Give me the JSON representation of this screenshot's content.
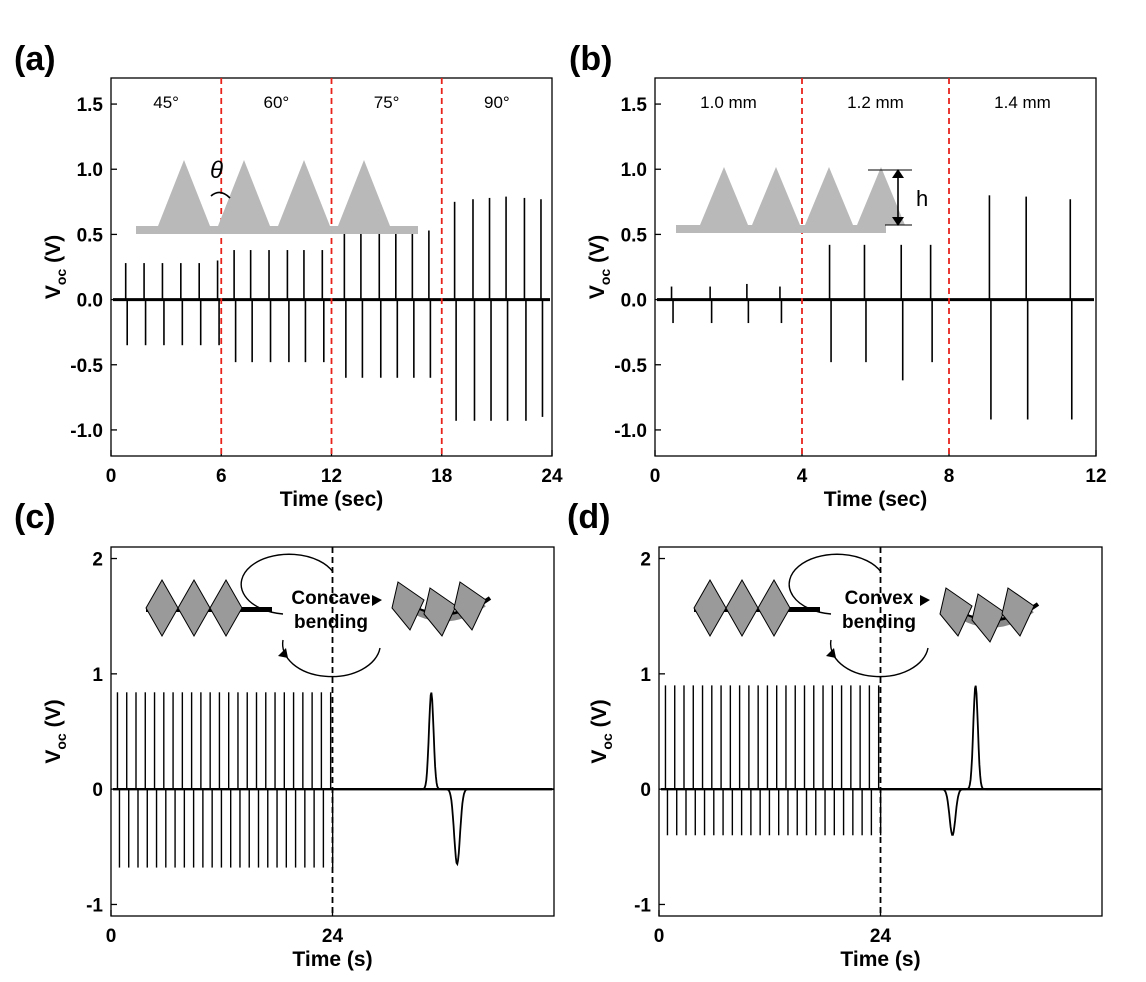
{
  "panels": [
    {
      "label": "(a)",
      "chart_data": {
        "type": "line",
        "xlabel": "Time (sec)",
        "ylabel_main": "V",
        "ylabel_sub": "oc",
        "ylabel_unit": "(V)",
        "xlim": [
          0,
          24
        ],
        "ylim": [
          -1.2,
          1.7
        ],
        "xticks": [
          0,
          6,
          12,
          18,
          24
        ],
        "xtick_labels": [
          "0",
          "6",
          "12",
          "18",
          "24"
        ],
        "yticks": [
          -1.0,
          -0.5,
          0.0,
          0.5,
          1.0,
          1.5
        ],
        "ytick_labels": [
          "-1.0",
          "-0.5",
          "0.0",
          "0.5",
          "1.0",
          "1.5"
        ],
        "baseline": 0,
        "dividers": [
          6,
          12,
          18
        ],
        "divider_color": "#e8231c",
        "segment_labels": [
          {
            "text": "45°",
            "x": 3
          },
          {
            "text": "60°",
            "x": 9
          },
          {
            "text": "75°",
            "x": 15
          },
          {
            "text": "90°",
            "x": 21
          }
        ],
        "peaks": [
          {
            "x": 0.8,
            "pos": 0.28,
            "neg": -0.35
          },
          {
            "x": 1.8,
            "pos": 0.28,
            "neg": -0.35
          },
          {
            "x": 2.8,
            "pos": 0.28,
            "neg": -0.35
          },
          {
            "x": 3.8,
            "pos": 0.28,
            "neg": -0.35
          },
          {
            "x": 4.8,
            "pos": 0.28,
            "neg": -0.35
          },
          {
            "x": 5.8,
            "pos": 0.3,
            "neg": -0.35
          },
          {
            "x": 6.7,
            "pos": 0.38,
            "neg": -0.48
          },
          {
            "x": 7.6,
            "pos": 0.38,
            "neg": -0.48
          },
          {
            "x": 8.6,
            "pos": 0.38,
            "neg": -0.48
          },
          {
            "x": 9.6,
            "pos": 0.38,
            "neg": -0.48
          },
          {
            "x": 10.5,
            "pos": 0.38,
            "neg": -0.48
          },
          {
            "x": 11.5,
            "pos": 0.38,
            "neg": -0.48
          },
          {
            "x": 12.7,
            "pos": 0.53,
            "neg": -0.6
          },
          {
            "x": 13.6,
            "pos": 0.53,
            "neg": -0.6
          },
          {
            "x": 14.6,
            "pos": 0.53,
            "neg": -0.6
          },
          {
            "x": 15.5,
            "pos": 0.53,
            "neg": -0.6
          },
          {
            "x": 16.4,
            "pos": 0.53,
            "neg": -0.6
          },
          {
            "x": 17.3,
            "pos": 0.53,
            "neg": -0.6
          },
          {
            "x": 18.7,
            "pos": 0.75,
            "neg": -0.93
          },
          {
            "x": 19.7,
            "pos": 0.77,
            "neg": -0.93
          },
          {
            "x": 20.6,
            "pos": 0.78,
            "neg": -0.93
          },
          {
            "x": 21.5,
            "pos": 0.79,
            "neg": -0.93
          },
          {
            "x": 22.5,
            "pos": 0.78,
            "neg": -0.93
          },
          {
            "x": 23.4,
            "pos": 0.77,
            "neg": -0.9
          }
        ],
        "inset": {
          "type": "triangles",
          "symbol": "θ"
        }
      }
    },
    {
      "label": "(b)",
      "chart_data": {
        "type": "line",
        "xlabel": "Time (sec)",
        "ylabel_main": "V",
        "ylabel_sub": "oc",
        "ylabel_unit": "(V)",
        "xlim": [
          0,
          12
        ],
        "ylim": [
          -1.2,
          1.7
        ],
        "xticks": [
          0,
          4,
          8,
          12
        ],
        "xtick_labels": [
          "0",
          "4",
          "8",
          "12"
        ],
        "yticks": [
          -1.0,
          -0.5,
          0.0,
          0.5,
          1.0,
          1.5
        ],
        "ytick_labels": [
          "-1.0",
          "-0.5",
          "0.0",
          "0.5",
          "1.0",
          "1.5"
        ],
        "baseline": 0,
        "dividers": [
          4,
          8
        ],
        "divider_color": "#e8231c",
        "segment_labels": [
          {
            "text": "1.0 mm",
            "x": 2
          },
          {
            "text": "1.2 mm",
            "x": 6
          },
          {
            "text": "1.4 mm",
            "x": 10
          }
        ],
        "peaks": [
          {
            "x": 0.45,
            "pos": 0.1,
            "neg": -0.18
          },
          {
            "x": 1.5,
            "pos": 0.1,
            "neg": -0.18
          },
          {
            "x": 2.5,
            "pos": 0.12,
            "neg": -0.18
          },
          {
            "x": 3.4,
            "pos": 0.1,
            "neg": -0.18
          },
          {
            "x": 4.75,
            "pos": 0.42,
            "neg": -0.48
          },
          {
            "x": 5.7,
            "pos": 0.42,
            "neg": -0.48
          },
          {
            "x": 6.7,
            "pos": 0.42,
            "neg": -0.62
          },
          {
            "x": 7.5,
            "pos": 0.42,
            "neg": -0.48
          },
          {
            "x": 9.1,
            "pos": 0.8,
            "neg": -0.92
          },
          {
            "x": 10.1,
            "pos": 0.79,
            "neg": -0.92
          },
          {
            "x": 11.3,
            "pos": 0.77,
            "neg": -0.92
          }
        ],
        "inset": {
          "type": "triangles",
          "symbol": "h"
        }
      }
    },
    {
      "label": "(c)",
      "chart_data": {
        "type": "line",
        "xlabel": "Time (s)",
        "ylabel_main": "V",
        "ylabel_sub": "oc",
        "ylabel_unit": "(V)",
        "xlim": [
          0,
          48
        ],
        "ylim": [
          -1.1,
          2.1
        ],
        "xticks": [
          0,
          24
        ],
        "xtick_labels": [
          "0",
          "24"
        ],
        "yticks": [
          -1,
          0,
          1,
          2
        ],
        "ytick_labels": [
          "-1",
          "0",
          "1",
          "2"
        ],
        "baseline": 0,
        "dividers": [
          24
        ],
        "divider_color": "#000000",
        "segment_labels": [],
        "peak_region": {
          "x_start": 0.7,
          "x_end": 23.8,
          "count": 24,
          "pos": 0.84,
          "neg": -0.68
        },
        "pulse": {
          "x_pos": 34.7,
          "pos": 0.84,
          "x_neg": 37.5,
          "neg": -0.65
        },
        "inset": {
          "type": "bending",
          "label_1": "Concave",
          "label_2": "bending"
        }
      }
    },
    {
      "label": "(d)",
      "chart_data": {
        "type": "line",
        "xlabel": "Time (s)",
        "ylabel_main": "V",
        "ylabel_sub": "oc",
        "ylabel_unit": "(V)",
        "xlim": [
          0,
          48
        ],
        "ylim": [
          -1.1,
          2.1
        ],
        "xticks": [
          0,
          24
        ],
        "xtick_labels": [
          "0",
          "24"
        ],
        "yticks": [
          -1,
          0,
          1,
          2
        ],
        "ytick_labels": [
          "-1",
          "0",
          "1",
          "2"
        ],
        "baseline": 0,
        "dividers": [
          24
        ],
        "divider_color": "#000000",
        "segment_labels": [],
        "peak_region": {
          "x_start": 0.7,
          "x_end": 23.8,
          "count": 24,
          "pos": 0.9,
          "neg": -0.4
        },
        "pulse": {
          "x_pos": 34.3,
          "pos": 0.9,
          "x_neg": 31.8,
          "neg": -0.4
        },
        "inset": {
          "type": "bending",
          "label_1": "Convex",
          "label_2": "bending"
        }
      }
    }
  ]
}
